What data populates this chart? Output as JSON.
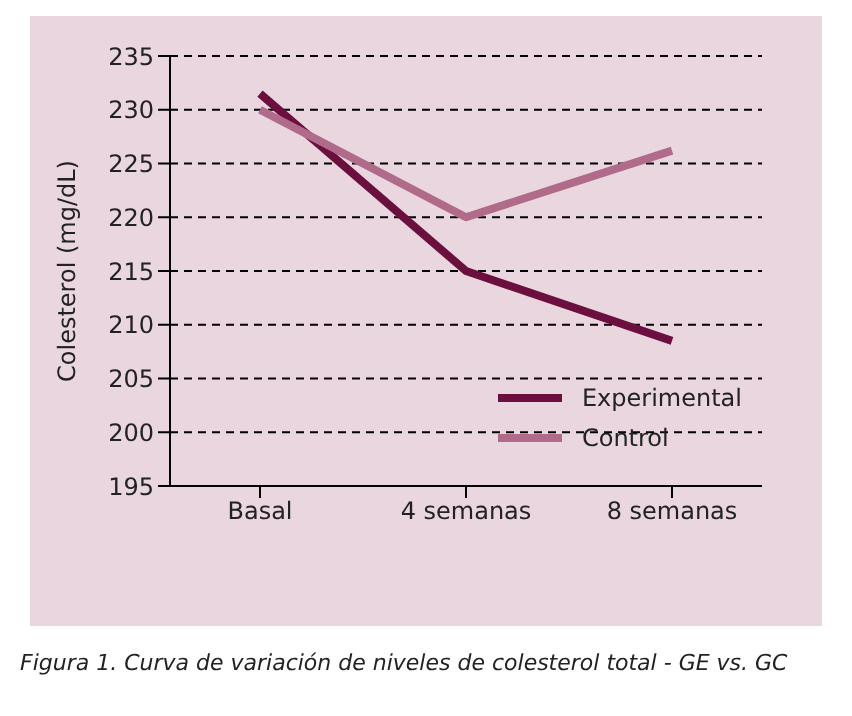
{
  "chart_data": {
    "type": "line",
    "categories": [
      "Basal",
      "4 semanas",
      "8 semanas"
    ],
    "ylabel": "Colesterol (mg/dL)",
    "series": [
      {
        "name": "Experimental",
        "color": "#6b0f3f",
        "values": [
          231.5,
          215,
          208.5
        ]
      },
      {
        "name": "Control",
        "color": "#b06a8a",
        "values": [
          230,
          220,
          226.2
        ]
      }
    ],
    "ylim": [
      195,
      235
    ],
    "yticks": [
      195,
      200,
      205,
      210,
      215,
      220,
      225,
      230,
      235
    ],
    "grid": "y",
    "legend": "bottom right",
    "marker": "none",
    "line_style": "solid",
    "annotations": [
      "Figura 1. Curva de variación de niveles de colesterol total - GE vs. GC"
    ]
  }
}
